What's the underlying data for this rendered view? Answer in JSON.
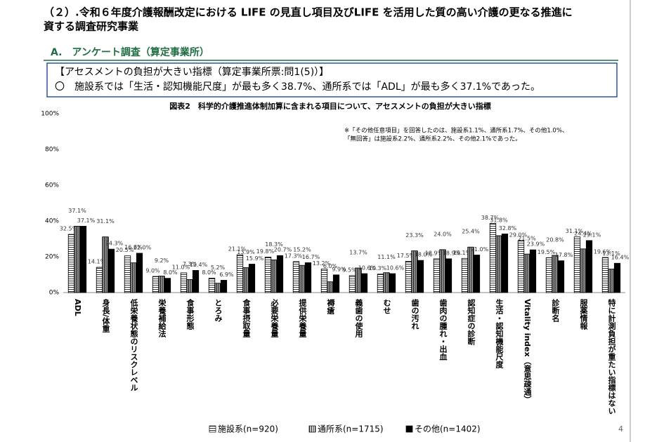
{
  "header": {
    "title_line1": "（２）.令和６年度介護報酬改定における LIFE の見直し項目及びLIFE を活用した質の高い介護の更なる推進に",
    "title_line2": "資する調査研究事業",
    "section": "A.　アンケート調査（算定事業所）",
    "box_line1": "【アセスメントの負担が大きい指標（算定事業所票:問1(5)）】",
    "box_line2": "〇　施設系では「生活・認知機能尺度」が最も多く38.7%、通所系では「ADL」が最も多く37.1%であった。",
    "page_number": "4"
  },
  "chart_data": {
    "type": "bar",
    "title": "図表2　科学的介護推進体制加算に含まれる項目について、アセスメントの負担が大きい指標",
    "annotations": [
      "※「その他任意項目」を回答したのは、施設系1.1%、通所系1.7%、その他1.0%、",
      "「無回答」は施設系2.2%、通所系2.2%、その他2.1%であった。"
    ],
    "categories": [
      "ADL",
      "身長/体重",
      "低栄養状態のリスクレベル",
      "栄養補給法",
      "食事形態",
      "とろみ",
      "食事摂取量",
      "必要栄養量",
      "提供栄養量",
      "褥瘡",
      "義歯の使用",
      "むせ",
      "歯の汚れ",
      "歯肉の腫れ・出血",
      "認知症の診断",
      "生活・認知機能尺度",
      "Vitality index（意思疎通）",
      "診断名",
      "服薬情報",
      "特に計測負担が重たい指標はない"
    ],
    "series": [
      {
        "name": "施設系(n=920)",
        "color": "#ffffff",
        "pattern": "horizontal",
        "values": [
          32.5,
          14.1,
          20.5,
          9.0,
          11.0,
          8.0,
          21.1,
          19.8,
          17.3,
          13.2,
          9.5,
          10.3,
          17.5,
          18.9,
          19.1,
          38.7,
          29.0,
          19.5,
          31.1,
          19.6
        ],
        "value_labels": [
          "32.5%",
          "14.1%",
          "20.5%",
          "9.0%",
          "11.0%",
          "8.0%",
          "21.1%",
          "19.8%",
          "17.3%",
          "13.2%",
          "9.5%",
          "10.3%",
          "17.5%",
          "18.9%",
          "19.1%",
          "38.7%",
          "29.0%",
          "19.5%",
          "31.1%",
          "19.6%"
        ]
      },
      {
        "name": "通所系(n=1715)",
        "color": "#a6a6a6",
        "pattern": "vertical",
        "values": [
          37.1,
          31.1,
          16.6,
          9.2,
          7.3,
          5.2,
          13.9,
          18.3,
          15.2,
          6.0,
          13.7,
          11.1,
          23.3,
          24.0,
          25.4,
          31.8,
          21.5,
          20.8,
          24.4,
          13.1
        ],
        "value_labels": [
          "37.1%",
          "31.1%",
          "16.6%",
          "9.2%",
          "7.3%",
          "5.2%",
          "13.9%",
          "18.3%",
          "15.2%",
          "6.0%",
          "13.7%",
          "11.1%",
          "23.3%",
          "24.0%",
          "25.4%",
          "31.8%",
          "21.5%",
          "20.8%",
          "24.4%",
          "13.1%"
        ]
      },
      {
        "name": "その他(n=1402)",
        "color": "#000000",
        "pattern": "solid",
        "values": [
          37.1,
          24.3,
          22.0,
          8.0,
          12.4,
          6.9,
          15.9,
          20.7,
          16.7,
          9.9,
          10.6,
          10.6,
          18.0,
          18.9,
          21.0,
          32.8,
          23.9,
          17.8,
          29.1,
          16.4
        ],
        "value_labels": [
          "37.1%",
          "24.3%",
          "22.0%",
          "8.0%",
          "12.4%",
          "6.9%",
          "15.9%",
          "20.7%",
          "16.7%",
          "9.9%",
          "10.6%",
          "10.6%",
          "18.0%",
          "18.9%",
          "21.0%",
          "32.8%",
          "23.9%",
          "17.8%",
          "29.1%",
          "16.4%"
        ]
      }
    ],
    "ylim": [
      0,
      100
    ],
    "yticks": [
      {
        "value": 0,
        "label": "0%"
      },
      {
        "value": 20,
        "label": "20%"
      },
      {
        "value": 40,
        "label": "40%"
      },
      {
        "value": 60,
        "label": "60%"
      },
      {
        "value": 80,
        "label": "80%"
      },
      {
        "value": 100,
        "label": "100%"
      }
    ],
    "grid": false,
    "legend": "bottom"
  }
}
